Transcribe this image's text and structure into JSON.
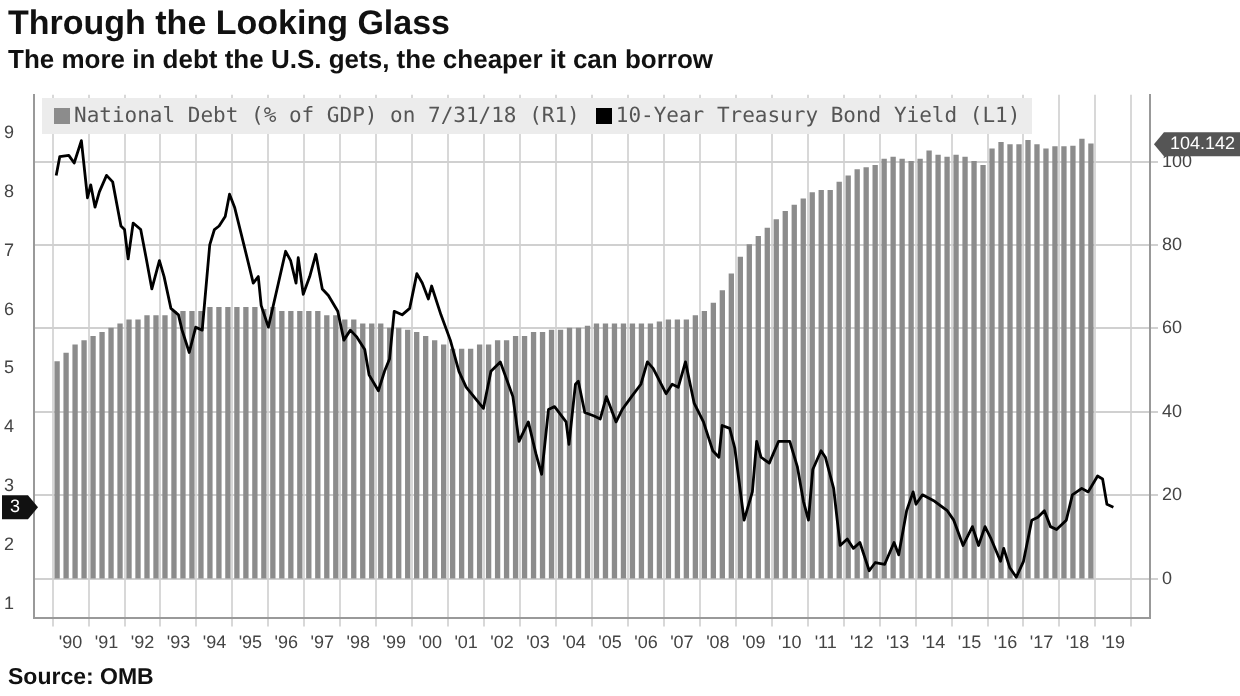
{
  "chart_data": {
    "type": "line",
    "title": "Through the Looking Glass",
    "subtitle": "The more in debt the U.S. gets, the cheaper it can borrow",
    "xlim": [
      1989.5,
      2019.5
    ],
    "xticks": [
      {
        "value": 1990,
        "label": "'90"
      },
      {
        "value": 1991,
        "label": "'91"
      },
      {
        "value": 1992,
        "label": "'92"
      },
      {
        "value": 1993,
        "label": "'93"
      },
      {
        "value": 1994,
        "label": "'94"
      },
      {
        "value": 1995,
        "label": "'95"
      },
      {
        "value": 1996,
        "label": "'96"
      },
      {
        "value": 1997,
        "label": "'97"
      },
      {
        "value": 1998,
        "label": "'98"
      },
      {
        "value": 1999,
        "label": "'99"
      },
      {
        "value": 2000,
        "label": "'00"
      },
      {
        "value": 2001,
        "label": "'01"
      },
      {
        "value": 2002,
        "label": "'02"
      },
      {
        "value": 2003,
        "label": "'03"
      },
      {
        "value": 2004,
        "label": "'04"
      },
      {
        "value": 2005,
        "label": "'05"
      },
      {
        "value": 2006,
        "label": "'06"
      },
      {
        "value": 2007,
        "label": "'07"
      },
      {
        "value": 2008,
        "label": "'08"
      },
      {
        "value": 2009,
        "label": "'09"
      },
      {
        "value": 2010,
        "label": "'10"
      },
      {
        "value": 2011,
        "label": "'11"
      },
      {
        "value": 2012,
        "label": "'12"
      },
      {
        "value": 2013,
        "label": "'13"
      },
      {
        "value": 2014,
        "label": "'14"
      },
      {
        "value": 2015,
        "label": "'15"
      },
      {
        "value": 2016,
        "label": "'16"
      },
      {
        "value": 2017,
        "label": "'17"
      },
      {
        "value": 2018,
        "label": "'18"
      },
      {
        "value": 2019,
        "label": "'19"
      }
    ],
    "ylim": [
      0.75,
      9.65
    ],
    "yticks": [
      1,
      2,
      3,
      4,
      5,
      6,
      7,
      8,
      9
    ],
    "y2lim": [
      -9.5,
      116
    ],
    "y2ticks": [
      0,
      20,
      40,
      60,
      80,
      100
    ],
    "grid": true,
    "legend": "top left",
    "marker": "none",
    "line_style": "solid",
    "series": [
      {
        "name": "National Debt (% of GDP) on 7/31/18 (R1)",
        "type": "bar",
        "axis": "y2",
        "color": "#8c8c8c",
        "x": [
          1989.625,
          1989.875,
          1990.125,
          1990.375,
          1990.625,
          1990.875,
          1991.125,
          1991.375,
          1991.625,
          1991.875,
          1992.125,
          1992.375,
          1992.625,
          1992.875,
          1993.125,
          1993.375,
          1993.625,
          1993.875,
          1994.125,
          1994.375,
          1994.625,
          1994.875,
          1995.125,
          1995.375,
          1995.625,
          1995.875,
          1996.125,
          1996.375,
          1996.625,
          1996.875,
          1997.125,
          1997.375,
          1997.625,
          1997.875,
          1998.125,
          1998.375,
          1998.625,
          1998.875,
          1999.125,
          1999.375,
          1999.625,
          1999.875,
          2000.125,
          2000.375,
          2000.625,
          2000.875,
          2001.125,
          2001.375,
          2001.625,
          2001.875,
          2002.125,
          2002.375,
          2002.625,
          2002.875,
          2003.125,
          2003.375,
          2003.625,
          2003.875,
          2004.125,
          2004.375,
          2004.625,
          2004.875,
          2005.125,
          2005.375,
          2005.625,
          2005.875,
          2006.125,
          2006.375,
          2006.625,
          2006.875,
          2007.125,
          2007.375,
          2007.625,
          2007.875,
          2008.125,
          2008.375,
          2008.625,
          2008.875,
          2009.125,
          2009.375,
          2009.625,
          2009.875,
          2010.125,
          2010.375,
          2010.625,
          2010.875,
          2011.125,
          2011.375,
          2011.625,
          2011.875,
          2012.125,
          2012.375,
          2012.625,
          2012.875,
          2013.125,
          2013.375,
          2013.625,
          2013.875,
          2014.125,
          2014.375,
          2014.625,
          2014.875,
          2015.125,
          2015.375,
          2015.625,
          2015.875,
          2016.125,
          2016.375,
          2016.625,
          2016.875,
          2017.125,
          2017.375,
          2017.625,
          2017.875,
          2018.125,
          2018.375
        ],
        "values": [
          52,
          54,
          56,
          57,
          58,
          59,
          60,
          61,
          62,
          62,
          63,
          63,
          63,
          64,
          64,
          64,
          64,
          65,
          65,
          65,
          65,
          65,
          65,
          64.5,
          65,
          64,
          64,
          64,
          64,
          64,
          63,
          63,
          62,
          62,
          61,
          61,
          61,
          60,
          60,
          59.5,
          59,
          58,
          57,
          56,
          55,
          55,
          55,
          56,
          56,
          57,
          57,
          58,
          58,
          59,
          59,
          59.5,
          59.5,
          60,
          60,
          60.5,
          61,
          61,
          61,
          61,
          61,
          61,
          61,
          61.5,
          62,
          62,
          62,
          63,
          64,
          66,
          69,
          73,
          77,
          80,
          82,
          84,
          86,
          88,
          89.5,
          91,
          92.5,
          93,
          93,
          95,
          96.5,
          98,
          98.5,
          99,
          100.5,
          101,
          100.5,
          100,
          100.5,
          102.5,
          101.5,
          101,
          101.5,
          101,
          100,
          99,
          103,
          104.5,
          104,
          104,
          105,
          104,
          103,
          103.5,
          103.5,
          103.6,
          105.3,
          104.142
        ]
      },
      {
        "name": "10-Year Treasury Bond Yield (L1)",
        "color": "#000000",
        "x": [
          1989.6,
          1989.7,
          1989.95,
          1990.1,
          1990.3,
          1990.47,
          1990.56,
          1990.68,
          1990.8,
          1991.0,
          1991.17,
          1991.4,
          1991.5,
          1991.6,
          1991.74,
          1991.95,
          1992.1,
          1992.26,
          1992.47,
          1992.6,
          1992.79,
          1993.0,
          1993.1,
          1993.3,
          1993.48,
          1993.66,
          1993.87,
          1994.0,
          1994.13,
          1994.3,
          1994.42,
          1994.56,
          1994.82,
          1995.08,
          1995.22,
          1995.3,
          1995.5,
          1995.78,
          1995.98,
          1996.12,
          1996.27,
          1996.33,
          1996.47,
          1996.65,
          1996.82,
          1997.0,
          1997.17,
          1997.43,
          1997.6,
          1997.78,
          1997.95,
          1998.18,
          1998.3,
          1998.56,
          1998.73,
          1998.87,
          1999.0,
          1999.22,
          1999.43,
          1999.63,
          1999.78,
          1999.95,
          2000.04,
          2000.3,
          2000.56,
          2000.8,
          2001.0,
          2001.48,
          2001.69,
          2001.95,
          2002.3,
          2002.47,
          2002.73,
          2002.94,
          2003.1,
          2003.29,
          2003.46,
          2003.78,
          2003.86,
          2004.04,
          2004.12,
          2004.3,
          2004.56,
          2004.73,
          2004.9,
          2005.17,
          2005.34,
          2005.6,
          2005.86,
          2006.04,
          2006.2,
          2006.56,
          2006.73,
          2006.9,
          2007.1,
          2007.34,
          2007.6,
          2007.86,
          2008.03,
          2008.12,
          2008.33,
          2008.47,
          2008.73,
          2008.96,
          2009.08,
          2009.2,
          2009.43,
          2009.69,
          2010.0,
          2010.21,
          2010.38,
          2010.52,
          2010.64,
          2010.87,
          2010.99,
          2011.22,
          2011.4,
          2011.6,
          2011.77,
          2011.95,
          2012.21,
          2012.38,
          2012.64,
          2012.9,
          2013.03,
          2013.25,
          2013.43,
          2013.51,
          2013.69,
          2014.03,
          2014.38,
          2014.56,
          2014.82,
          2015.08,
          2015.25,
          2015.43,
          2015.6,
          2015.86,
          2015.95,
          2016.12,
          2016.3,
          2016.5,
          2016.73,
          2016.9,
          2017.08,
          2017.25,
          2017.42,
          2017.69,
          2017.86,
          2018.12,
          2018.3,
          2018.56,
          2018.7,
          2018.82,
          2019.0
        ],
        "values": [
          8.28,
          8.6,
          8.62,
          8.49,
          8.87,
          7.9,
          8.12,
          7.74,
          8.0,
          8.28,
          8.17,
          7.42,
          7.36,
          6.86,
          7.47,
          7.36,
          6.88,
          6.35,
          6.83,
          6.56,
          6.02,
          5.91,
          5.65,
          5.27,
          5.7,
          5.65,
          7.1,
          7.36,
          7.42,
          7.58,
          7.96,
          7.74,
          7.1,
          6.45,
          6.56,
          6.07,
          5.7,
          6.45,
          6.99,
          6.83,
          6.45,
          6.88,
          6.26,
          6.56,
          6.94,
          6.35,
          6.24,
          5.97,
          5.48,
          5.65,
          5.54,
          5.32,
          4.89,
          4.62,
          4.95,
          5.16,
          5.97,
          5.91,
          6.02,
          6.61,
          6.45,
          6.18,
          6.4,
          5.91,
          5.48,
          4.95,
          4.68,
          4.32,
          4.95,
          5.11,
          4.52,
          3.76,
          4.09,
          3.55,
          3.2,
          4.3,
          4.35,
          4.09,
          3.71,
          4.73,
          4.78,
          4.25,
          4.19,
          4.14,
          4.52,
          4.09,
          4.3,
          4.52,
          4.73,
          5.11,
          5.0,
          4.57,
          4.73,
          4.68,
          5.11,
          4.41,
          4.09,
          3.6,
          3.49,
          4.03,
          3.98,
          3.65,
          2.42,
          2.9,
          3.76,
          3.49,
          3.39,
          3.76,
          3.76,
          3.33,
          2.74,
          2.42,
          3.28,
          3.6,
          3.49,
          2.96,
          1.99,
          2.1,
          1.94,
          2.04,
          1.56,
          1.7,
          1.67,
          2.04,
          1.83,
          2.58,
          2.9,
          2.69,
          2.85,
          2.74,
          2.58,
          2.42,
          1.99,
          2.31,
          1.99,
          2.31,
          2.1,
          1.72,
          1.94,
          1.61,
          1.45,
          1.72,
          2.42,
          2.47,
          2.58,
          2.31,
          2.26,
          2.42,
          2.85,
          2.96,
          2.9,
          3.17,
          3.12,
          2.69,
          2.64
        ]
      }
    ],
    "annotations": [
      "104.142",
      "3",
      "Source: OMB"
    ]
  }
}
